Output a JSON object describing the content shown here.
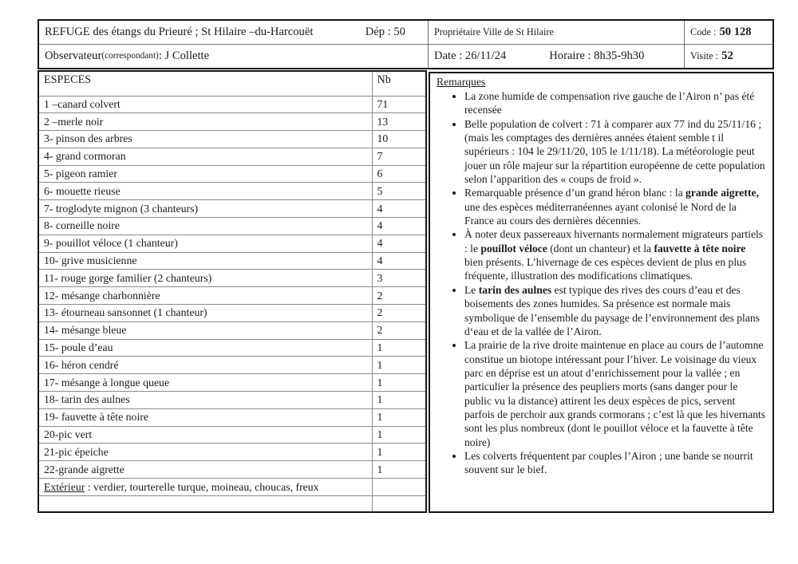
{
  "header": {
    "title": "REFUGE des étangs du Prieuré ; St Hilaire –du-Harcouët",
    "dept": "Dép : 50",
    "observateur_label": "Observateur ",
    "observateur_paren": "(correspondant)",
    "observateur_value": " : J Collette",
    "proprietaire": "Propriétaire Ville de St Hilaire",
    "date": "Date : 26/11/24",
    "horaire": "Horaire : 8h35-9h30",
    "code_label": "Code :",
    "code_value": "50 128",
    "visite_label": "Visite :",
    "visite_value": "52"
  },
  "species": {
    "col_species": "ESPECES",
    "col_count": "Nb",
    "rows": [
      {
        "label": "1 –canard colvert",
        "count": "71"
      },
      {
        "label": "2 –merle noir",
        "count": "13"
      },
      {
        "label": "3- pinson des arbres",
        "count": "10"
      },
      {
        "label": "4-  grand cormoran",
        "count": "7"
      },
      {
        "label": "5- pigeon ramier",
        "count": "6"
      },
      {
        "label": "6-  mouette rieuse",
        "count": "5"
      },
      {
        "label": "7-  troglodyte mignon (3 chanteurs)",
        "count": "4"
      },
      {
        "label": "8-  corneille noire",
        "count": "4"
      },
      {
        "label": "9-  pouillot véloce (1 chanteur)",
        "count": "4"
      },
      {
        "label": "10-  grive musicienne",
        "count": "4"
      },
      {
        "label": "11-  rouge gorge familier (2 chanteurs)",
        "count": "3"
      },
      {
        "label": "12-  mésange charbonnière",
        "count": "2"
      },
      {
        "label": "13-   étourneau sansonnet (1 chanteur)",
        "count": "2"
      },
      {
        "label": "14-  mésange bleue",
        "count": "2"
      },
      {
        "label": "15-  poule d’eau",
        "count": "1"
      },
      {
        "label": "16-  héron cendré",
        "count": "1"
      },
      {
        "label": "17-  mésange à longue queue",
        "count": "1"
      },
      {
        "label": "18- tarin des aulnes",
        "count": "1"
      },
      {
        "label": "19-  fauvette à tête noire",
        "count": "1"
      },
      {
        "label": "20-pic vert",
        "count": "1"
      },
      {
        "label": "21-pic épeiche",
        "count": "1"
      },
      {
        "label": "22-grande aigrette",
        "count": "1"
      }
    ],
    "exterior_label": "Extérieur",
    "exterior_value": " : verdier, tourterelle turque, moineau, choucas, freux"
  },
  "remarks": {
    "title": "Remarques",
    "items": [
      [
        {
          "t": "La zone humide de compensation rive gauche de l’Airon n’ pas été recensée"
        }
      ],
      [
        {
          "t": "Belle population de colvert : 71 à comparer aux 77 ind du 25/11/16 ; (mais les comptages des dernières années étaient semble t il supérieurs : 104 le 29/11/20, 105 le 1/11/18). La météorologie peut jouer un rôle majeur sur la répartition européenne de cette population selon l’apparition des « coups de froid »."
        }
      ],
      [
        {
          "t": "Remarquable présence d’un grand héron blanc : la "
        },
        {
          "t": "grande aigrette,",
          "b": true
        },
        {
          "t": " une des espèces méditerranéennes ayant colonisé le Nord de la France au cours des dernières décennies."
        }
      ],
      [
        {
          "t": "À noter deux passereaux hivernants normalement migrateurs partiels : le "
        },
        {
          "t": "pouillot véloce",
          "b": true
        },
        {
          "t": " (dont un chanteur) et la "
        },
        {
          "t": "fauvette à tête noire",
          "b": true
        },
        {
          "t": " bien présents. L’hivernage de ces espèces devient de plus en plus fréquente, illustration des modifications climatiques."
        }
      ],
      [
        {
          "t": "Le "
        },
        {
          "t": "tarin des aulnes",
          "b": true
        },
        {
          "t": " est typique des rives des cours d’eau et des boisements des zones humides. Sa présence est normale mais symbolique de l’ensemble du paysage de l’environnement des plans d‘eau et de la vallée de l’Airon."
        }
      ],
      [
        {
          "t": "La prairie de la rive droite maintenue en place au cours de l’automne constitue un biotope intéressant pour l’hiver. Le voisinage du vieux parc en déprise est un atout d’enrichissement pour la vallée ; en particulier la présence des peupliers morts (sans danger pour le public vu la distance) attirent les deux espèces de pics, servent parfois de perchoir aux grands cormorans ; c’est là que les hivernants sont les plus nombreux (dont le pouillot véloce et la fauvette à tête noire)"
        }
      ],
      [
        {
          "t": "Les colverts fréquentent par couples l’Airon ; une bande se nourrit souvent sur le bief."
        }
      ]
    ]
  }
}
